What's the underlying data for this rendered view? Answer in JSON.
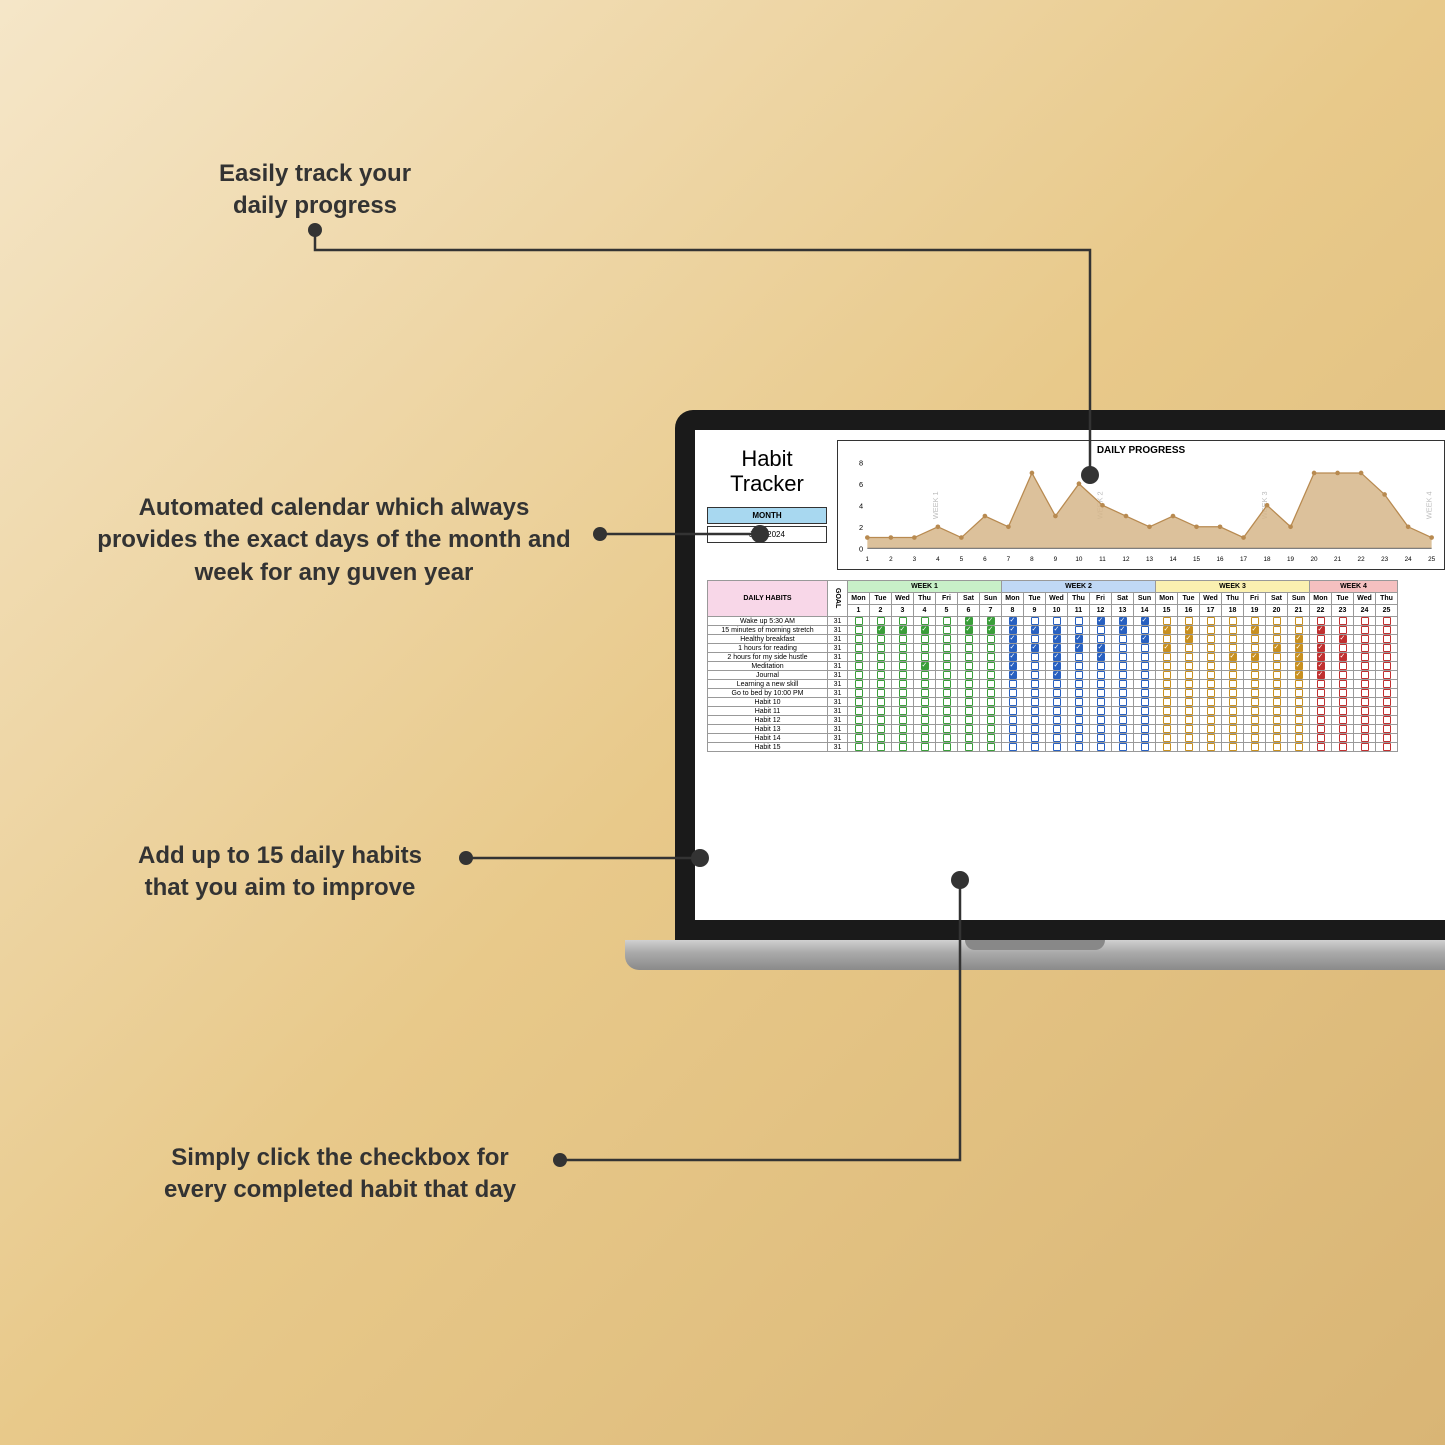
{
  "callouts": {
    "c1": "Easily track your\ndaily progress",
    "c2": "Automated calendar which always\nprovides the exact days of the month and\nweek for any guven year",
    "c3": "Add up to 15 daily habits\nthat you aim to improve",
    "c4": "Simply click the checkbox for\nevery completed habit that day"
  },
  "tracker": {
    "title_l1": "Habit",
    "title_l2": "Tracker",
    "month_label": "MONTH",
    "month_value": "July, 2024",
    "chart_title": "DAILY PROGRESS",
    "y_ticks": [
      "0",
      "2",
      "4",
      "6",
      "8"
    ],
    "week_side_labels": [
      "WEEK 1",
      "WEEK 2",
      "WEEK 3",
      "WEEK 4"
    ],
    "chart_values": [
      1,
      1,
      1,
      2,
      1,
      3,
      2,
      7,
      3,
      6,
      4,
      3,
      2,
      3,
      2,
      2,
      1,
      4,
      2,
      7,
      7,
      7,
      5,
      2,
      1
    ],
    "chart_ymax": 8,
    "chart_fill": "#d6b68a",
    "chart_dot": "#b88a50"
  },
  "table": {
    "habits_header": "DAILY HABITS",
    "goal_header": "GOAL",
    "weeks": [
      {
        "label": "WEEK 1",
        "cls": "w1",
        "color": "c1"
      },
      {
        "label": "WEEK 2",
        "cls": "w2",
        "color": "c2"
      },
      {
        "label": "WEEK 3",
        "cls": "w3",
        "color": "c3"
      },
      {
        "label": "WEEK 4",
        "cls": "w4",
        "color": "c4"
      }
    ],
    "days": [
      "Mon",
      "Tue",
      "Wed",
      "Thu",
      "Fri",
      "Sat",
      "Sun"
    ],
    "dates_start": 1,
    "visible_day_cols": 25,
    "habits": [
      {
        "name": "Wake up 5:30 AM",
        "goal": 31,
        "checked": [
          5,
          6,
          7,
          11,
          12,
          13
        ]
      },
      {
        "name": "15 minutes of morning stretch",
        "goal": 31,
        "checked": [
          1,
          2,
          3,
          5,
          6,
          7,
          8,
          9,
          12,
          14,
          15,
          18,
          21
        ]
      },
      {
        "name": "Healthy breakfast",
        "goal": 31,
        "checked": [
          7,
          9,
          10,
          13,
          15,
          20,
          22
        ]
      },
      {
        "name": "1 hours for reading",
        "goal": 31,
        "checked": [
          7,
          8,
          9,
          10,
          11,
          14,
          19,
          20,
          21
        ]
      },
      {
        "name": "2 hours for my side hustle",
        "goal": 31,
        "checked": [
          7,
          9,
          11,
          17,
          18,
          20,
          21,
          22
        ]
      },
      {
        "name": "Meditation",
        "goal": 31,
        "checked": [
          3,
          7,
          9,
          20,
          21
        ]
      },
      {
        "name": "Journal",
        "goal": 31,
        "checked": [
          7,
          9,
          20,
          21
        ]
      },
      {
        "name": "Learning a new skill",
        "goal": 31,
        "checked": []
      },
      {
        "name": "Go to bed by 10:00 PM",
        "goal": 31,
        "checked": []
      },
      {
        "name": "Habit 10",
        "goal": 31,
        "checked": []
      },
      {
        "name": "Habit 11",
        "goal": 31,
        "checked": []
      },
      {
        "name": "Habit 12",
        "goal": 31,
        "checked": []
      },
      {
        "name": "Habit 13",
        "goal": 31,
        "checked": []
      },
      {
        "name": "Habit 14",
        "goal": 31,
        "checked": []
      },
      {
        "name": "Habit 15",
        "goal": 31,
        "checked": []
      }
    ]
  }
}
